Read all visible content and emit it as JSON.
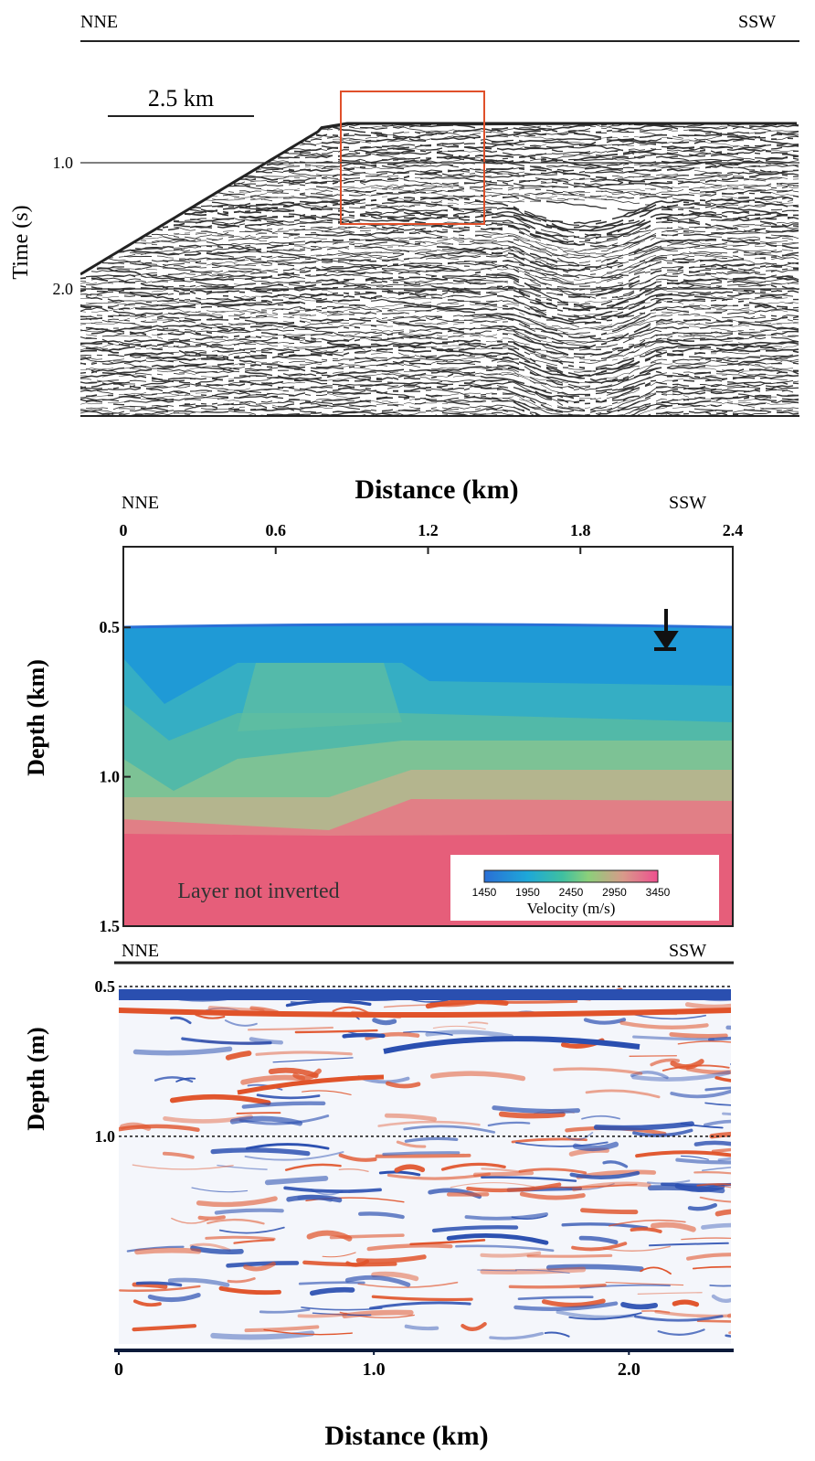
{
  "panel_a": {
    "left_label": "NNE",
    "right_label": "SSW",
    "scale_bar_label": "2.5 km",
    "y_label": "Time (s)",
    "ylim": [
      0,
      3
    ],
    "yticks": [
      {
        "value": 1,
        "label": "1.0"
      },
      {
        "value": 2,
        "label": "2.0"
      }
    ]
  },
  "panel_b": {
    "title": "Distance (km)",
    "left_label": "NNE",
    "right_label": "SSW",
    "y_label": "Depth (km)",
    "xlim": [
      0,
      2.4
    ],
    "xticks": [
      0,
      0.6,
      1.2,
      1.8,
      2.4
    ],
    "ylim": [
      0.23,
      1.5
    ],
    "yticks": [
      0.5,
      {
        "value": 1,
        "label": "1.0"
      },
      1.5
    ],
    "annotation": "Layer not inverted",
    "colorbar_label": "Velocity (m/s)",
    "colorbar_range": [
      1450,
      3450
    ],
    "colorbar_ticks": [
      1450,
      1950,
      2450,
      2950,
      3450
    ]
  },
  "panel_c": {
    "left_label": "NNE",
    "right_label": "SSW",
    "y_label": "Depth (m)",
    "x_label": "Distance (km)",
    "xlim": [
      0,
      2.4
    ],
    "xticks": [
      0,
      {
        "value": 1,
        "label": "1.0"
      },
      {
        "value": 2,
        "label": "2.0"
      }
    ],
    "ylim": [
      0.5,
      1.69
    ],
    "yticks": [
      0.5,
      {
        "value": 1,
        "label": "1.0"
      }
    ]
  }
}
